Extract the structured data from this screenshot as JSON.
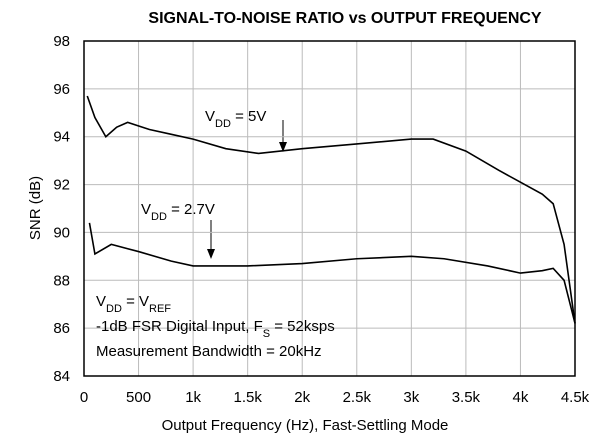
{
  "chart_data": {
    "type": "line",
    "title": "SIGNAL-TO-NOISE RATIO vs OUTPUT FREQUENCY",
    "x_label": "Output Frequency (Hz), Fast-Settling Mode",
    "y_label": "SNR (dB)",
    "xlim": [
      0,
      4500
    ],
    "ylim": [
      84,
      98
    ],
    "xticks": [
      0,
      500,
      {
        "value": 1000,
        "label": "1k"
      },
      {
        "value": 1500,
        "label": "1.5k"
      },
      {
        "value": 2000,
        "label": "2k"
      },
      {
        "value": 2500,
        "label": "2.5k"
      },
      {
        "value": 3000,
        "label": "3k"
      },
      {
        "value": 3500,
        "label": "3.5k"
      },
      {
        "value": 4000,
        "label": "4k"
      },
      {
        "value": 4500,
        "label": "4.5k"
      }
    ],
    "yticks": [
      84,
      86,
      88,
      90,
      92,
      94,
      96,
      98
    ],
    "grid": true,
    "series": [
      {
        "name": [
          {
            "t": "V"
          },
          {
            "t": "DD",
            "sub": true
          },
          {
            "t": " = 5V"
          }
        ],
        "color": "#000000",
        "x": [
          30,
          100,
          200,
          300,
          400,
          600,
          800,
          1000,
          1300,
          1600,
          2000,
          2500,
          3000,
          3200,
          3500,
          3800,
          4000,
          4200,
          4300,
          4400,
          4500
        ],
        "values": [
          95.7,
          94.8,
          94.0,
          94.4,
          94.6,
          94.3,
          94.1,
          93.9,
          93.5,
          93.3,
          93.5,
          93.7,
          93.9,
          93.9,
          93.4,
          92.6,
          92.1,
          91.6,
          91.2,
          89.5,
          86.2
        ]
      },
      {
        "name": [
          {
            "t": "V"
          },
          {
            "t": "DD",
            "sub": true
          },
          {
            "t": " = 2.7V"
          }
        ],
        "color": "#000000",
        "x": [
          50,
          100,
          250,
          500,
          800,
          1000,
          1500,
          2000,
          2500,
          3000,
          3300,
          3700,
          4000,
          4200,
          4300,
          4400,
          4500
        ],
        "values": [
          90.4,
          89.1,
          89.5,
          89.2,
          88.8,
          88.6,
          88.6,
          88.7,
          88.9,
          89.0,
          88.9,
          88.6,
          88.3,
          88.4,
          88.5,
          88.0,
          86.2
        ]
      }
    ],
    "annotations": [
      [
        {
          "t": "V"
        },
        {
          "t": "DD",
          "sub": true
        },
        {
          "t": " = V"
        },
        {
          "t": "REF",
          "sub": true
        }
      ],
      [
        {
          "t": " -1dB FSR Digital Input, F"
        },
        {
          "t": "S",
          "sub": true
        },
        {
          "t": " = 52ksps"
        }
      ],
      [
        {
          "t": "Measurement Bandwidth = 20kHz"
        }
      ]
    ]
  }
}
